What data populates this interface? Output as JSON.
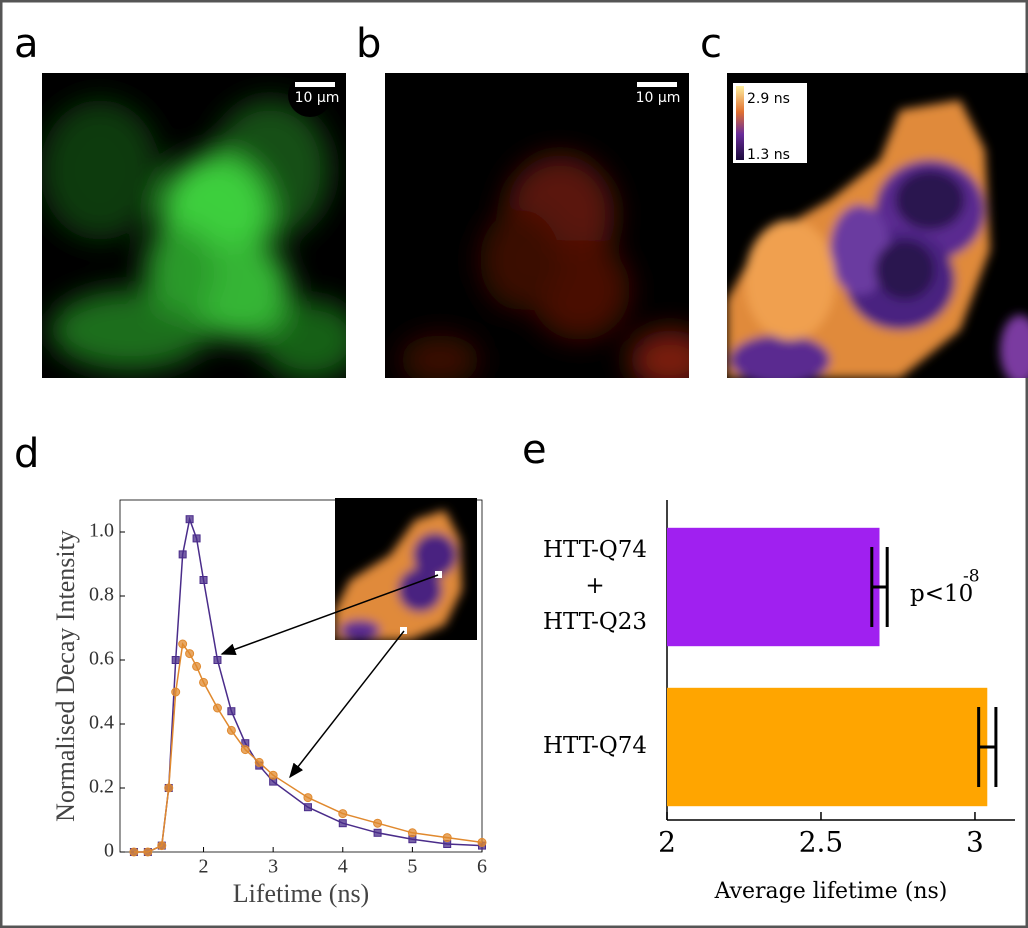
{
  "panels": {
    "labels": [
      "a",
      "b",
      "c",
      "d",
      "e"
    ],
    "scale_bar": "10 μm",
    "colorbar": {
      "max": "2.9 ns",
      "min": "1.3 ns"
    }
  },
  "chart_data": [
    {
      "type": "line",
      "x_label": "Lifetime (ns)",
      "y_label": "Normalised Decay Intensity",
      "x": [
        1.0,
        1.2,
        1.4,
        1.5,
        1.6,
        1.7,
        1.8,
        1.9,
        2.0,
        2.2,
        2.4,
        2.6,
        2.8,
        3.0,
        3.5,
        4.0,
        4.5,
        5.0,
        5.5,
        6.0
      ],
      "series": [
        {
          "color": "#4a2c8a",
          "marker": "square",
          "values": [
            0,
            0,
            0.02,
            0.2,
            0.6,
            0.93,
            1.04,
            0.98,
            0.85,
            0.6,
            0.44,
            0.34,
            0.27,
            0.22,
            0.14,
            0.09,
            0.06,
            0.04,
            0.025,
            0.02
          ]
        },
        {
          "color": "#e0892e",
          "marker": "circle",
          "values": [
            0,
            0,
            0.02,
            0.2,
            0.5,
            0.65,
            0.62,
            0.58,
            0.53,
            0.45,
            0.38,
            0.32,
            0.28,
            0.24,
            0.17,
            0.12,
            0.09,
            0.06,
            0.045,
            0.03
          ]
        }
      ],
      "xlim": [
        0.8,
        6
      ],
      "xticks": [
        2,
        3,
        4,
        5,
        6
      ],
      "ylim": [
        0,
        1.1
      ],
      "yticks": [
        0,
        0.2,
        0.4,
        0.6,
        0.8,
        {
          "value": 1,
          "label": "1.0"
        }
      ]
    },
    {
      "type": "hbar",
      "x_label": "Average lifetime (ns)",
      "categories": [
        "HTT-Q74\n+\nHTT-Q23",
        "HTT-Q74"
      ],
      "values": [
        2.69,
        3.04
      ],
      "errors": [
        0.025,
        0.028
      ],
      "colors": [
        "#a020f0",
        "#ffa500"
      ],
      "xlim": [
        2,
        3.13
      ],
      "xticks": [
        2,
        2.5,
        3
      ],
      "annotation": {
        "text": "p<10",
        "superscript": "-8"
      }
    }
  ]
}
